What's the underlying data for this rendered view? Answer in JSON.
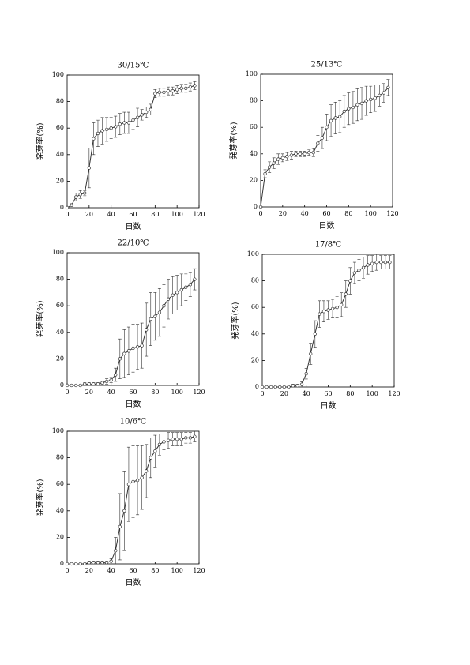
{
  "chart_data": [
    {
      "type": "line",
      "title": "30/15℃",
      "xlabel": "日数",
      "ylabel": "発芽率(%)",
      "color": "#333333",
      "x": [
        0,
        4,
        8,
        12,
        16,
        20,
        24,
        28,
        32,
        36,
        40,
        44,
        48,
        52,
        56,
        60,
        64,
        68,
        72,
        76,
        80,
        84,
        88,
        92,
        96,
        100,
        104,
        108,
        112,
        116
      ],
      "values": [
        0,
        2,
        8,
        10,
        11,
        30,
        52,
        56,
        58,
        59,
        60,
        61,
        63,
        64,
        64,
        66,
        68,
        70,
        72,
        74,
        86,
        87,
        87,
        88,
        88,
        89,
        90,
        90,
        91,
        92
      ],
      "errors": [
        0,
        1,
        3,
        3,
        2,
        15,
        12,
        10,
        10,
        9,
        8,
        8,
        8,
        8,
        8,
        7,
        7,
        4,
        4,
        4,
        3,
        3,
        3,
        3,
        3,
        3,
        3,
        3,
        3,
        3
      ],
      "xlim": [
        0,
        120
      ],
      "ylim": [
        0,
        100
      ],
      "xticks": [
        0,
        20,
        40,
        60,
        80,
        100,
        120
      ],
      "yticks": [
        0,
        20,
        40,
        60,
        80,
        100
      ]
    },
    {
      "type": "line",
      "title": "25/13℃",
      "xlabel": "日数",
      "ylabel": "発芽率(%)",
      "color": "#333333",
      "x": [
        0,
        4,
        8,
        12,
        16,
        20,
        24,
        28,
        32,
        36,
        40,
        44,
        48,
        52,
        56,
        60,
        64,
        68,
        72,
        76,
        80,
        84,
        88,
        92,
        96,
        100,
        104,
        108,
        112,
        116
      ],
      "values": [
        0,
        25,
        30,
        33,
        36,
        37,
        38,
        39,
        40,
        40,
        40,
        41,
        41,
        48,
        52,
        60,
        65,
        67,
        68,
        72,
        74,
        75,
        77,
        78,
        80,
        81,
        82,
        84,
        86,
        90
      ],
      "errors": [
        0,
        3,
        4,
        4,
        4,
        3,
        3,
        3,
        2,
        2,
        2,
        2,
        3,
        6,
        8,
        10,
        12,
        12,
        12,
        12,
        12,
        12,
        12,
        12,
        11,
        10,
        10,
        8,
        7,
        6
      ],
      "xlim": [
        0,
        120
      ],
      "ylim": [
        0,
        100
      ],
      "xticks": [
        0,
        20,
        40,
        60,
        80,
        100,
        120
      ],
      "yticks": [
        0,
        20,
        40,
        60,
        80,
        100
      ]
    },
    {
      "type": "line",
      "title": "22/10℃",
      "xlabel": "日数",
      "ylabel": "発芽率(%)",
      "color": "#333333",
      "x": [
        0,
        4,
        8,
        12,
        16,
        20,
        24,
        28,
        32,
        36,
        40,
        44,
        48,
        52,
        56,
        60,
        64,
        68,
        72,
        76,
        80,
        84,
        88,
        92,
        96,
        100,
        104,
        108,
        112,
        116
      ],
      "values": [
        0,
        0,
        0,
        0,
        1,
        1,
        1,
        1,
        2,
        3,
        4,
        8,
        20,
        24,
        26,
        28,
        29,
        30,
        42,
        50,
        52,
        55,
        60,
        65,
        68,
        70,
        72,
        74,
        76,
        80
      ],
      "errors": [
        0,
        0,
        0,
        0,
        1,
        1,
        1,
        1,
        1,
        2,
        2,
        5,
        15,
        18,
        18,
        18,
        17,
        17,
        20,
        20,
        18,
        18,
        16,
        15,
        14,
        13,
        12,
        10,
        9,
        8
      ],
      "xlim": [
        0,
        120
      ],
      "ylim": [
        0,
        100
      ],
      "xticks": [
        0,
        20,
        40,
        60,
        80,
        100,
        120
      ],
      "yticks": [
        0,
        20,
        40,
        60,
        80,
        100
      ]
    },
    {
      "type": "line",
      "title": "17/8℃",
      "xlabel": "日数",
      "ylabel": "発芽率(%)",
      "color": "#333333",
      "x": [
        0,
        4,
        8,
        12,
        16,
        20,
        24,
        28,
        32,
        36,
        40,
        44,
        48,
        52,
        56,
        60,
        64,
        68,
        72,
        76,
        80,
        84,
        88,
        92,
        96,
        100,
        104,
        108,
        112,
        116
      ],
      "values": [
        0,
        0,
        0,
        0,
        0,
        0,
        0,
        1,
        1,
        2,
        10,
        25,
        40,
        55,
        57,
        58,
        59,
        60,
        62,
        70,
        80,
        86,
        88,
        90,
        92,
        93,
        94,
        94,
        94,
        94
      ],
      "errors": [
        0,
        0,
        0,
        0,
        0,
        0,
        0,
        1,
        1,
        2,
        4,
        8,
        10,
        10,
        8,
        7,
        7,
        8,
        9,
        10,
        10,
        8,
        8,
        8,
        7,
        6,
        6,
        5,
        5,
        5
      ],
      "xlim": [
        0,
        120
      ],
      "ylim": [
        0,
        100
      ],
      "xticks": [
        0,
        20,
        40,
        60,
        80,
        100,
        120
      ],
      "yticks": [
        0,
        20,
        40,
        60,
        80,
        100
      ]
    },
    {
      "type": "line",
      "title": "10/6℃",
      "xlabel": "日数",
      "ylabel": "発芽率(%)",
      "color": "#333333",
      "x": [
        0,
        4,
        8,
        12,
        16,
        20,
        24,
        28,
        32,
        36,
        40,
        44,
        48,
        52,
        56,
        60,
        64,
        68,
        72,
        76,
        80,
        84,
        88,
        92,
        96,
        100,
        104,
        108,
        112,
        116
      ],
      "values": [
        0,
        0,
        0,
        0,
        0,
        1,
        1,
        1,
        1,
        1,
        2,
        10,
        28,
        40,
        60,
        62,
        63,
        65,
        70,
        80,
        85,
        90,
        92,
        93,
        94,
        94,
        94,
        95,
        95,
        96
      ],
      "errors": [
        0,
        0,
        0,
        0,
        0,
        1,
        1,
        1,
        1,
        1,
        2,
        10,
        25,
        30,
        28,
        27,
        26,
        24,
        20,
        15,
        12,
        8,
        6,
        6,
        5,
        5,
        5,
        4,
        4,
        4
      ],
      "xlim": [
        0,
        120
      ],
      "ylim": [
        0,
        100
      ],
      "xticks": [
        0,
        20,
        40,
        60,
        80,
        100,
        120
      ],
      "yticks": [
        0,
        20,
        40,
        60,
        80,
        100
      ]
    }
  ]
}
